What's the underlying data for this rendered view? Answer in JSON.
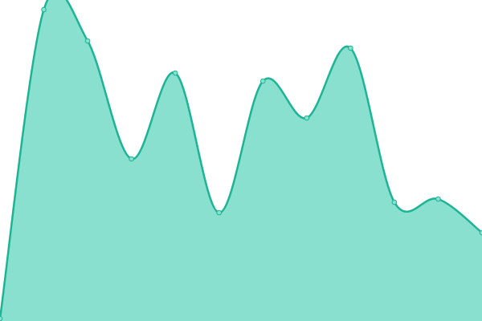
{
  "chart_data": {
    "type": "area",
    "categories": [
      null,
      null,
      null,
      null,
      null,
      null,
      null,
      null,
      null,
      null,
      null,
      null
    ],
    "values": [
      3,
      388,
      349,
      202,
      309,
      135,
      299,
      253,
      340,
      148,
      152,
      110
    ],
    "ylim": [
      0,
      400
    ],
    "color": "#1db495",
    "fill": "#89e0cf"
  }
}
